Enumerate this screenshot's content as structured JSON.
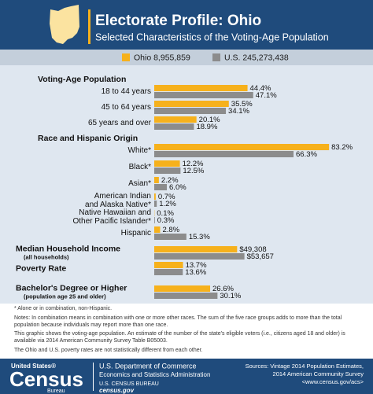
{
  "chart_data": {
    "type": "bar",
    "title": "Electorate Profile: Ohio",
    "subtitle": "Selected Characteristics of the Voting-Age Population",
    "series": [
      {
        "name": "Ohio 8,955,859",
        "color": "#f6b11c"
      },
      {
        "name": "U.S. 245,273,438",
        "color": "#8c8c8c"
      }
    ],
    "panels": [
      {
        "title": "Voting-Age Population",
        "xlim": [
          0,
          100
        ],
        "categories": [
          "18 to 44 years",
          "45 to 64 years",
          "65 years and over"
        ],
        "series": [
          {
            "values": [
              44.4,
              35.5,
              20.1
            ],
            "value_labels": [
              "44.4%",
              "35.5%",
              "20.1%"
            ]
          },
          {
            "values": [
              47.1,
              34.1,
              18.9
            ],
            "value_labels": [
              "47.1%",
              "34.1%",
              "18.9%"
            ]
          }
        ]
      },
      {
        "title": "Race and Hispanic Origin",
        "xlim": [
          0,
          100
        ],
        "categories": [
          "White*",
          "Black*",
          "Asian*",
          "American Indian\nand Alaska Native*",
          "Native Hawaiian and\nOther Pacific Islander*",
          "Hispanic"
        ],
        "series": [
          {
            "values": [
              83.2,
              12.2,
              2.2,
              0.7,
              0.1,
              2.8
            ],
            "value_labels": [
              "83.2%",
              "12.2%",
              "2.2%",
              "0.7%",
              "0.1%",
              "2.8%"
            ]
          },
          {
            "values": [
              66.3,
              12.5,
              6.0,
              1.2,
              0.3,
              15.3
            ],
            "value_labels": [
              "66.3%",
              "12.5%",
              "6.0%",
              "1.2%",
              "0.3%",
              "15.3%"
            ]
          }
        ]
      },
      {
        "title": "Median Household Income",
        "subtitle": "(all households)",
        "xlim": [
          0,
          125000
        ],
        "series": [
          {
            "values": [
              49308
            ],
            "value_labels": [
              "$49,308"
            ]
          },
          {
            "values": [
              53657
            ],
            "value_labels": [
              "$53,657"
            ]
          }
        ]
      },
      {
        "title": "Poverty Rate",
        "xlim": [
          0,
          100
        ],
        "series": [
          {
            "values": [
              13.7
            ],
            "value_labels": [
              "13.7%"
            ]
          },
          {
            "values": [
              13.6
            ],
            "value_labels": [
              "13.6%"
            ]
          }
        ]
      },
      {
        "title": "Bachelor's Degree or Higher",
        "subtitle": "(population age 25 and older)",
        "xlim": [
          0,
          100
        ],
        "series": [
          {
            "values": [
              26.6
            ],
            "value_labels": [
              "26.6%"
            ]
          },
          {
            "values": [
              30.1
            ],
            "value_labels": [
              "30.1%"
            ]
          }
        ]
      }
    ]
  },
  "notes": [
    "* Alone or in combination, non-Hispanic.",
    "Notes: In combination means in combination with one or more other races. The sum of the five race groups adds to more than the total population because individuals may report more than one race.",
    "This graphic shows the voting-age population. An estimate of the number of the state's eligible voters (i.e., citizens aged 18 and older) is available via 2014 American Community Survey Table B05003.",
    "The Ohio and U.S. poverty rates are not statistically different from each other."
  ],
  "footer": {
    "logo": {
      "top": "United States®",
      "main": "Census",
      "bottom": "Bureau"
    },
    "agency": [
      "U.S. Department of Commerce",
      "Economics and Statistics Administration",
      "U.S. CENSUS BUREAU",
      "census.gov"
    ],
    "sources": [
      "Sources: Vintage 2014 Population Estimates,",
      "2014 American Community Survey",
      "<www.census.gov/acs>"
    ]
  }
}
